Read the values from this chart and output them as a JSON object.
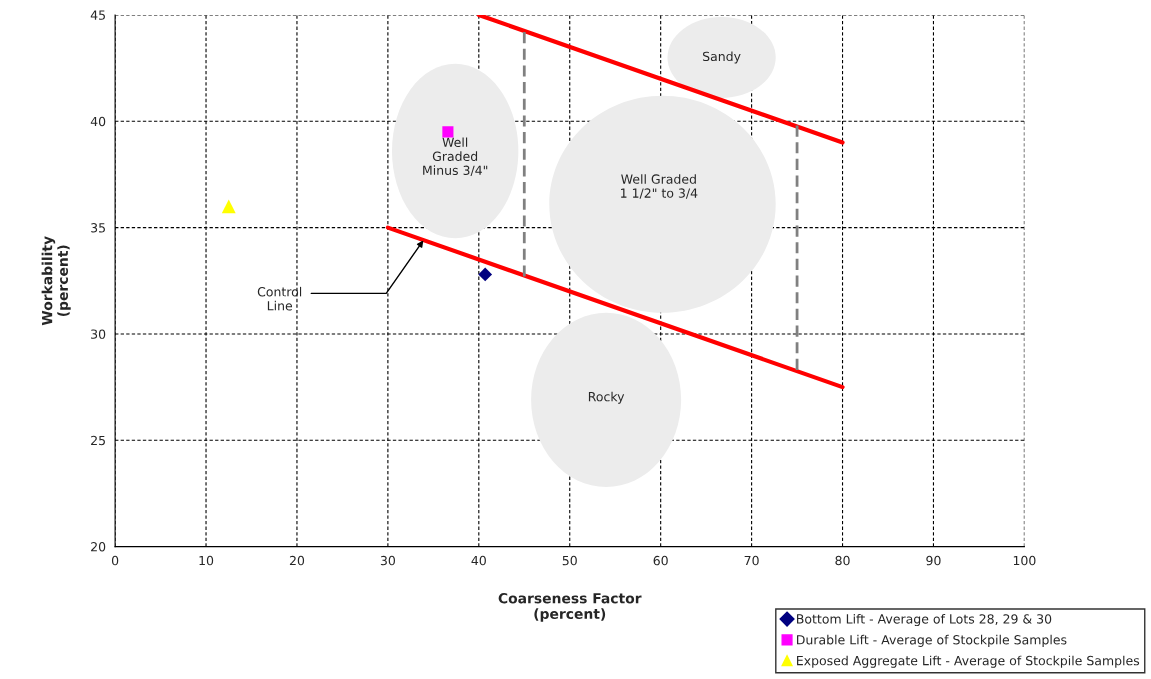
{
  "chart_data": {
    "type": "scatter",
    "xlabel": "Coarseness Factor\n(percent)",
    "ylabel": "Workability\n(percent)",
    "xlim": [
      0,
      100
    ],
    "ylim": [
      20,
      45
    ],
    "xticks": [
      0,
      10,
      20,
      30,
      40,
      50,
      60,
      70,
      80,
      90,
      100
    ],
    "yticks": [
      20,
      25,
      30,
      35,
      40,
      45
    ],
    "grid": true,
    "legend": "bottom right",
    "series": [
      {
        "name": "Bottom Lift - Average of Lots 28, 29 & 30",
        "marker": "diamond",
        "color": "#000080",
        "x": [
          40.7
        ],
        "values": [
          32.8
        ]
      },
      {
        "name": "Durable Lift - Average of Stockpile Samples",
        "marker": "square",
        "color": "#ff00ff",
        "x": [
          36.6
        ],
        "values": [
          39.5
        ]
      },
      {
        "name": "Exposed Aggregate Lift - Average of Stockpile Samples",
        "marker": "triangle",
        "color": "#ffff00",
        "x": [
          12.5
        ],
        "values": [
          36.0
        ]
      },
      {
        "type": "line",
        "color": "#ff0000",
        "line_style": "solid",
        "x": [
          40,
          80
        ],
        "values": [
          45,
          39
        ]
      },
      {
        "type": "line",
        "color": "#ff0000",
        "line_style": "solid",
        "x": [
          30,
          80
        ],
        "values": [
          35,
          27.5
        ]
      },
      {
        "type": "line",
        "color": "#808080",
        "line_style": "dashed",
        "x": [
          45,
          45
        ],
        "values": [
          32.7,
          44.2
        ]
      },
      {
        "type": "line",
        "color": "#808080",
        "line_style": "dashed",
        "x": [
          75,
          75
        ],
        "values": [
          39.8,
          28.2
        ]
      }
    ],
    "annotations": [
      "Sandy",
      "Well\nGraded\nMinus 3/4\"",
      "Well Graded\n1 1/2\" to 3/4",
      "Rocky",
      {
        "text": "Control\nLine",
        "x": 33.9,
        "y": 34.4
      }
    ]
  }
}
